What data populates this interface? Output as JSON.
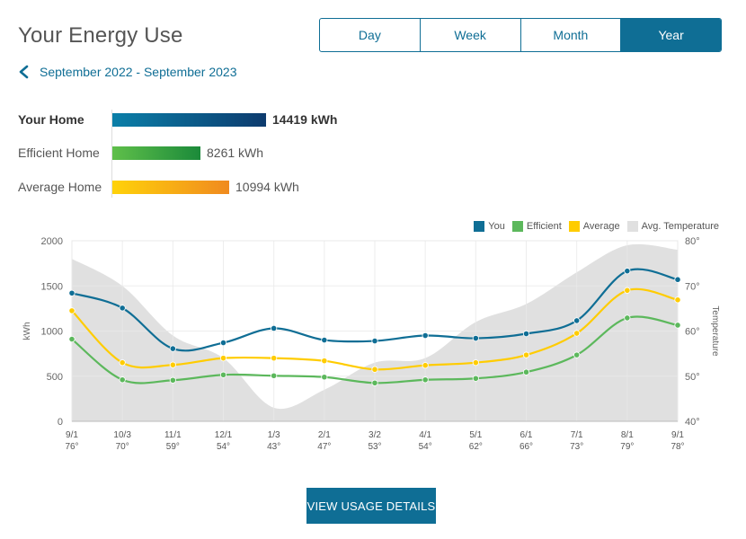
{
  "header": {
    "title": "Your Energy Use",
    "tabs": [
      {
        "label": "Day",
        "active": false
      },
      {
        "label": "Week",
        "active": false
      },
      {
        "label": "Month",
        "active": false
      },
      {
        "label": "Year",
        "active": true
      }
    ]
  },
  "range": {
    "label": "September 2022 - September 2023",
    "back_icon": "chevron-left-icon"
  },
  "comparison": [
    {
      "label": "Your Home",
      "value": "14419 kWh",
      "kwh": 14419,
      "color_from": "#0b7fa8",
      "color_to": "#0d3b6e"
    },
    {
      "label": "Efficient Home",
      "value": "8261 kWh",
      "kwh": 8261,
      "color_from": "#5fbf4a",
      "color_to": "#1b8a3a"
    },
    {
      "label": "Average Home",
      "value": "10994 kWh",
      "kwh": 10994,
      "color_from": "#ffd20a",
      "color_to": "#f08a1f"
    }
  ],
  "chart_data": {
    "type": "line",
    "categories": [
      "9/1",
      "10/3",
      "11/1",
      "12/1",
      "1/3",
      "2/1",
      "3/2",
      "4/1",
      "5/1",
      "6/1",
      "7/1",
      "8/1",
      "9/1"
    ],
    "temperature_labels": [
      "76°",
      "70°",
      "59°",
      "54°",
      "43°",
      "47°",
      "53°",
      "54°",
      "62°",
      "66°",
      "73°",
      "79°",
      "78°"
    ],
    "series": [
      {
        "name": "You",
        "color": "#0f6e95",
        "values": [
          1420,
          1255,
          805,
          870,
          1030,
          900,
          890,
          950,
          920,
          970,
          1115,
          1665,
          1570
        ]
      },
      {
        "name": "Efficient",
        "color": "#5cb85c",
        "values": [
          910,
          460,
          455,
          515,
          505,
          490,
          425,
          460,
          475,
          545,
          735,
          1145,
          1065
        ]
      },
      {
        "name": "Average",
        "color": "#ffcc00",
        "values": [
          1225,
          650,
          625,
          700,
          700,
          670,
          575,
          620,
          650,
          735,
          975,
          1450,
          1345
        ]
      }
    ],
    "temperature": {
      "name": "Avg. Temperature",
      "color": "#e0e0e0",
      "values": [
        76,
        70,
        59,
        54,
        43,
        47,
        53,
        54,
        62,
        66,
        73,
        79,
        78
      ]
    },
    "ylabel": "kWh",
    "y2label": "Temperature",
    "ylim": [
      0,
      2000
    ],
    "yticks": [
      "0",
      "500",
      "1000",
      "1500",
      "2000"
    ],
    "y2lim": [
      40,
      80
    ],
    "y2ticks": [
      "40°",
      "50°",
      "60°",
      "70°",
      "80°"
    ],
    "grid": true,
    "legend": "top-right"
  },
  "buttons": {
    "details": "VIEW USAGE DETAILS"
  }
}
